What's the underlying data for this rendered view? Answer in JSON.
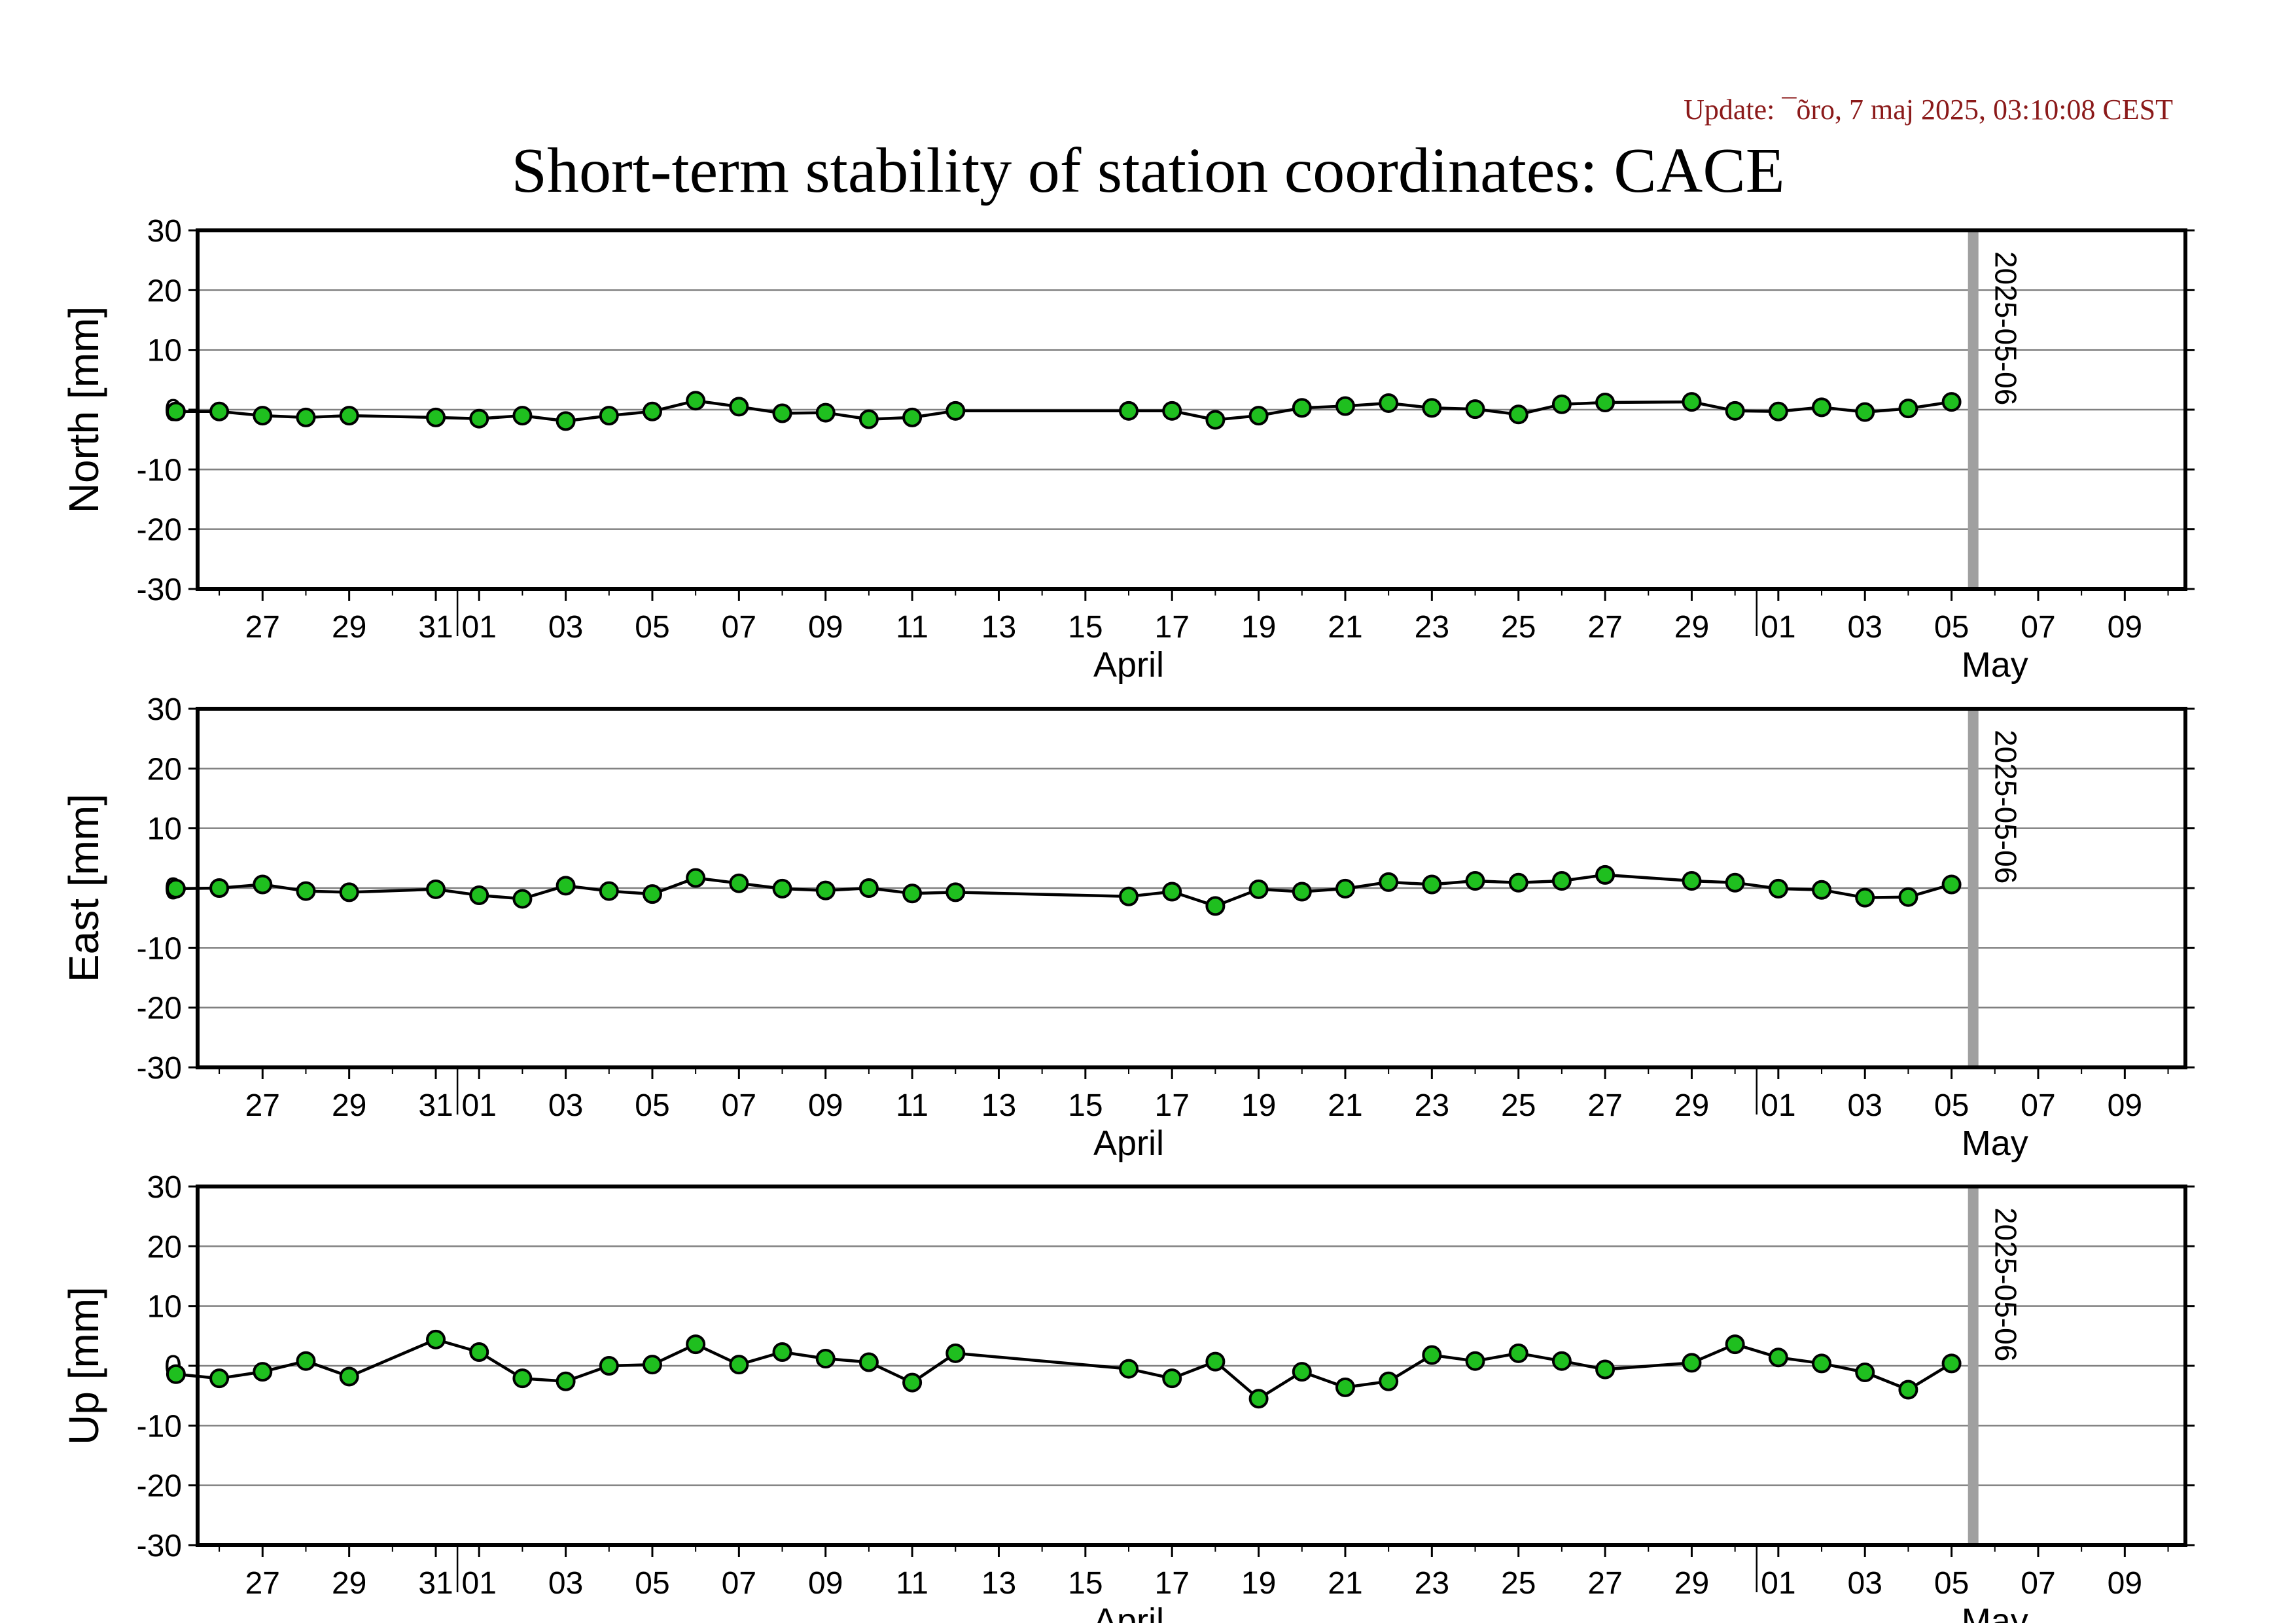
{
  "update_text": "Update: ¯õro, 7 maj 2025, 03:10:08 CEST",
  "title": "Short-term stability of station coordinates: CACE",
  "colors": {
    "point_fill": "#1fbf1f",
    "line": "#000000",
    "grid": "#808080",
    "marker_line": "#a0a0a0"
  },
  "chart_data": [
    {
      "type": "line",
      "name": "north-panel",
      "ylabel": "North [mm]",
      "ylim": [
        -30,
        30
      ],
      "yticks": [
        30,
        20,
        10,
        0,
        -10,
        -20,
        -30
      ],
      "xlim": [
        "2025-03-25",
        "2025-05-10"
      ],
      "xtick_labels": [
        {
          "date": "2025-03-27",
          "label": "27"
        },
        {
          "date": "2025-03-29",
          "label": "29"
        },
        {
          "date": "2025-03-31",
          "label": "31"
        },
        {
          "date": "2025-04-01",
          "label": "01"
        },
        {
          "date": "2025-04-03",
          "label": "03"
        },
        {
          "date": "2025-04-05",
          "label": "05"
        },
        {
          "date": "2025-04-07",
          "label": "07"
        },
        {
          "date": "2025-04-09",
          "label": "09"
        },
        {
          "date": "2025-04-11",
          "label": "11"
        },
        {
          "date": "2025-04-13",
          "label": "13"
        },
        {
          "date": "2025-04-15",
          "label": "15"
        },
        {
          "date": "2025-04-17",
          "label": "17"
        },
        {
          "date": "2025-04-19",
          "label": "19"
        },
        {
          "date": "2025-04-21",
          "label": "21"
        },
        {
          "date": "2025-04-23",
          "label": "23"
        },
        {
          "date": "2025-04-25",
          "label": "25"
        },
        {
          "date": "2025-04-27",
          "label": "27"
        },
        {
          "date": "2025-04-29",
          "label": "29"
        },
        {
          "date": "2025-05-01",
          "label": "01"
        },
        {
          "date": "2025-05-03",
          "label": "03"
        },
        {
          "date": "2025-05-05",
          "label": "05"
        },
        {
          "date": "2025-05-07",
          "label": "07"
        },
        {
          "date": "2025-05-09",
          "label": "09"
        }
      ],
      "month_labels": [
        {
          "date": "2025-04-16",
          "label": "April"
        },
        {
          "date": "2025-05-06",
          "label": "May"
        }
      ],
      "month_boundaries": [
        "2025-04-01",
        "2025-05-01"
      ],
      "marker": {
        "date": "2025-05-06",
        "label": "2025-05-06"
      },
      "grid": true,
      "x": [
        "2025-03-25",
        "2025-03-26",
        "2025-03-27",
        "2025-03-28",
        "2025-03-29",
        "2025-03-31",
        "2025-04-01",
        "2025-04-02",
        "2025-04-03",
        "2025-04-04",
        "2025-04-05",
        "2025-04-06",
        "2025-04-07",
        "2025-04-08",
        "2025-04-09",
        "2025-04-10",
        "2025-04-11",
        "2025-04-12",
        "2025-04-16",
        "2025-04-17",
        "2025-04-18",
        "2025-04-19",
        "2025-04-20",
        "2025-04-21",
        "2025-04-22",
        "2025-04-23",
        "2025-04-24",
        "2025-04-25",
        "2025-04-26",
        "2025-04-27",
        "2025-04-29",
        "2025-04-30",
        "2025-05-01",
        "2025-05-02",
        "2025-05-03",
        "2025-05-04",
        "2025-05-05"
      ],
      "y": [
        -0.3,
        -0.3,
        -1.0,
        -1.3,
        -1.0,
        -1.3,
        -1.5,
        -1.0,
        -1.9,
        -1.0,
        -0.3,
        1.5,
        0.5,
        -0.6,
        -0.5,
        -1.6,
        -1.3,
        -0.2,
        -0.2,
        -0.2,
        -1.7,
        -1.0,
        0.3,
        0.6,
        1.1,
        0.3,
        0.1,
        -0.8,
        0.9,
        1.2,
        1.3,
        -0.2,
        -0.3,
        0.4,
        -0.4,
        0.2,
        1.3
      ]
    },
    {
      "type": "line",
      "name": "east-panel",
      "ylabel": "East [mm]",
      "ylim": [
        -30,
        30
      ],
      "yticks": [
        30,
        20,
        10,
        0,
        -10,
        -20,
        -30
      ],
      "xlim": [
        "2025-03-25",
        "2025-05-10"
      ],
      "marker": {
        "date": "2025-05-06",
        "label": "2025-05-06"
      },
      "grid": true,
      "x": [
        "2025-03-25",
        "2025-03-26",
        "2025-03-27",
        "2025-03-28",
        "2025-03-29",
        "2025-03-31",
        "2025-04-01",
        "2025-04-02",
        "2025-04-03",
        "2025-04-04",
        "2025-04-05",
        "2025-04-06",
        "2025-04-07",
        "2025-04-08",
        "2025-04-09",
        "2025-04-10",
        "2025-04-11",
        "2025-04-12",
        "2025-04-16",
        "2025-04-17",
        "2025-04-18",
        "2025-04-19",
        "2025-04-20",
        "2025-04-21",
        "2025-04-22",
        "2025-04-23",
        "2025-04-24",
        "2025-04-25",
        "2025-04-26",
        "2025-04-27",
        "2025-04-29",
        "2025-04-30",
        "2025-05-01",
        "2025-05-02",
        "2025-05-03",
        "2025-05-04",
        "2025-05-05"
      ],
      "y": [
        -0.1,
        0.0,
        0.6,
        -0.5,
        -0.7,
        -0.2,
        -1.2,
        -1.8,
        0.4,
        -0.5,
        -1.0,
        1.7,
        0.8,
        -0.1,
        -0.4,
        0.0,
        -0.9,
        -0.7,
        -1.4,
        -0.6,
        -3.0,
        -0.2,
        -0.6,
        -0.1,
        1.0,
        0.6,
        1.2,
        0.9,
        1.2,
        2.2,
        1.2,
        0.9,
        -0.1,
        -0.3,
        -1.6,
        -1.5,
        0.6
      ]
    },
    {
      "type": "line",
      "name": "up-panel",
      "ylabel": "Up [mm]",
      "ylim": [
        -30,
        30
      ],
      "yticks": [
        30,
        20,
        10,
        0,
        -10,
        -20,
        -30
      ],
      "xlim": [
        "2025-03-25",
        "2025-05-10"
      ],
      "marker": {
        "date": "2025-05-06",
        "label": "2025-05-06"
      },
      "grid": true,
      "x": [
        "2025-03-25",
        "2025-03-26",
        "2025-03-27",
        "2025-03-28",
        "2025-03-29",
        "2025-03-31",
        "2025-04-01",
        "2025-04-02",
        "2025-04-03",
        "2025-04-04",
        "2025-04-05",
        "2025-04-06",
        "2025-04-07",
        "2025-04-08",
        "2025-04-09",
        "2025-04-10",
        "2025-04-11",
        "2025-04-12",
        "2025-04-16",
        "2025-04-17",
        "2025-04-18",
        "2025-04-19",
        "2025-04-20",
        "2025-04-21",
        "2025-04-22",
        "2025-04-23",
        "2025-04-24",
        "2025-04-25",
        "2025-04-26",
        "2025-04-27",
        "2025-04-29",
        "2025-04-30",
        "2025-05-01",
        "2025-05-02",
        "2025-05-03",
        "2025-05-04",
        "2025-05-05"
      ],
      "y": [
        -1.4,
        -2.1,
        -1.0,
        0.8,
        -1.8,
        4.4,
        2.3,
        -2.1,
        -2.6,
        0.0,
        0.2,
        3.6,
        0.2,
        2.3,
        1.2,
        0.6,
        -2.8,
        2.1,
        -0.5,
        -2.1,
        0.7,
        -5.5,
        -1.0,
        -3.6,
        -2.6,
        1.8,
        0.8,
        2.1,
        0.8,
        -0.6,
        0.5,
        3.6,
        1.4,
        0.4,
        -1.1,
        -4.0,
        0.4
      ]
    }
  ]
}
